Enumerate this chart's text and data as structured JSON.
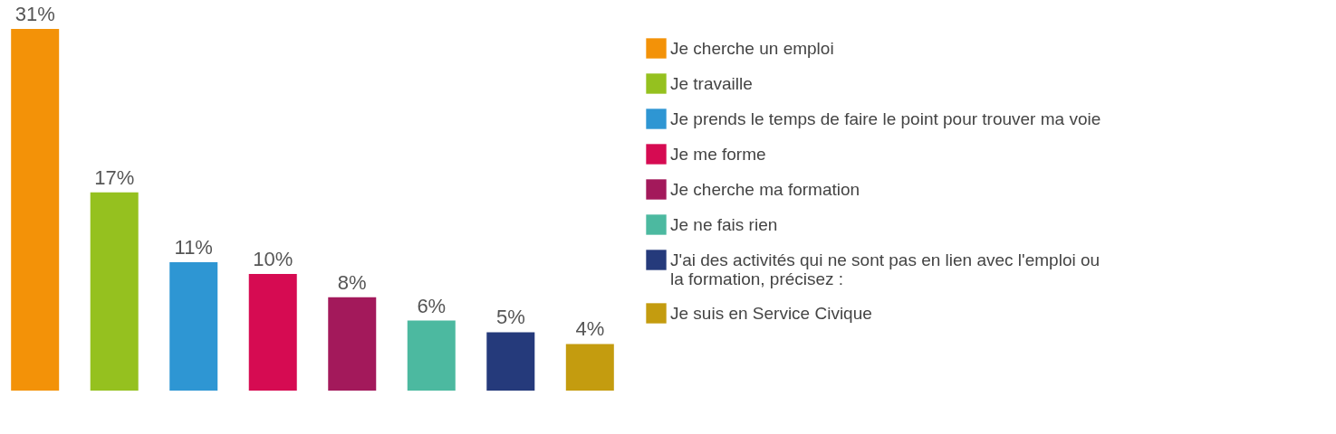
{
  "chart_data": {
    "type": "bar",
    "categories": [
      null,
      null,
      null,
      null,
      null,
      null,
      null,
      null
    ],
    "series": [
      {
        "name": "Je cherche un emploi",
        "color": "#f39208",
        "values": [
          31,
          null,
          null,
          null,
          null,
          null,
          null,
          null
        ],
        "value_labels": [
          "31%",
          null,
          null,
          null,
          null,
          null,
          null,
          null
        ]
      },
      {
        "name": "Je travaille",
        "color": "#95c11f",
        "values": [
          null,
          17,
          null,
          null,
          null,
          null,
          null,
          null
        ],
        "value_labels": [
          null,
          "17%",
          null,
          null,
          null,
          null,
          null,
          null
        ]
      },
      {
        "name": "Je prends le temps de faire le point pour trouver ma voie",
        "color": "#2e96d3",
        "values": [
          null,
          null,
          11,
          null,
          null,
          null,
          null,
          null
        ],
        "value_labels": [
          null,
          null,
          "11%",
          null,
          null,
          null,
          null,
          null
        ]
      },
      {
        "name": "Je me forme",
        "color": "#d60b52",
        "values": [
          null,
          null,
          null,
          10,
          null,
          null,
          null,
          null
        ],
        "value_labels": [
          null,
          null,
          null,
          "10%",
          null,
          null,
          null,
          null
        ]
      },
      {
        "name": "Je cherche ma formation",
        "color": "#a3195b",
        "values": [
          null,
          null,
          null,
          null,
          8,
          null,
          null,
          null
        ],
        "value_labels": [
          null,
          null,
          null,
          null,
          "8%",
          null,
          null,
          null
        ]
      },
      {
        "name": "Je ne fais rien",
        "color": "#4cb9a0",
        "values": [
          null,
          null,
          null,
          null,
          null,
          6,
          null,
          null
        ],
        "value_labels": [
          null,
          null,
          null,
          null,
          null,
          "6%",
          null,
          null
        ]
      },
      {
        "name": "J'ai des activités qui ne sont pas en lien avec l'emploi ou la formation, précisez :",
        "color": "#253a7b",
        "values": [
          null,
          null,
          null,
          null,
          null,
          null,
          5,
          null
        ],
        "value_labels": [
          null,
          null,
          null,
          null,
          null,
          null,
          "5%",
          null
        ]
      },
      {
        "name": "Je suis en Service Civique",
        "color": "#c49c0f",
        "values": [
          null,
          null,
          null,
          null,
          null,
          null,
          null,
          4
        ],
        "value_labels": [
          null,
          null,
          null,
          null,
          null,
          null,
          null,
          "4%"
        ]
      }
    ],
    "ylim": [
      0,
      31
    ],
    "stacked": true,
    "tick_labels": false,
    "legend": "right"
  }
}
